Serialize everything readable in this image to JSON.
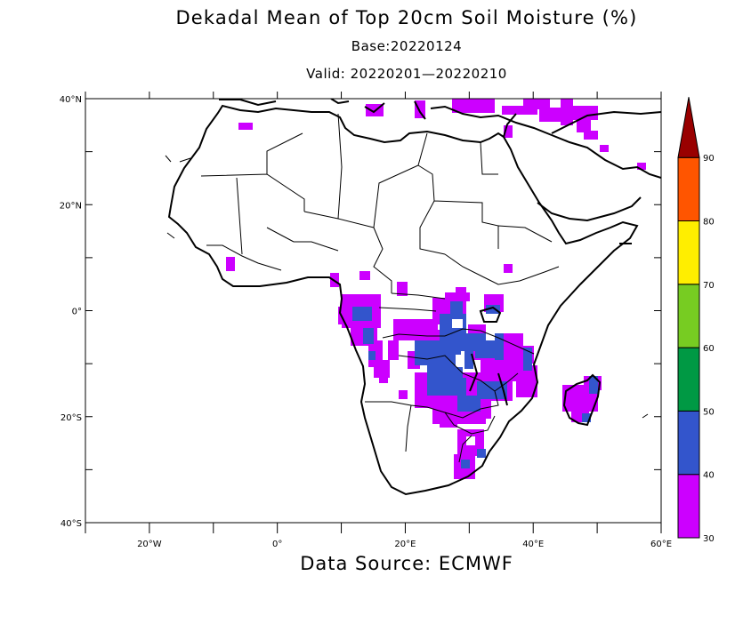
{
  "title": "Dekadal Mean of Top 20cm Soil Moisture (%)",
  "base": "Base:20220124",
  "valid": "Valid: 20220201—20220210",
  "source": "Data Source: ECMWF",
  "map": {
    "lon_range": [
      -30,
      60
    ],
    "lat_range": [
      -40,
      40
    ],
    "lat_labels": [
      "40°N",
      "20°N",
      "0°",
      "20°S",
      "40°S"
    ],
    "lat_values": [
      40,
      20,
      0,
      -20,
      -40
    ],
    "lon_labels": [
      "20°W",
      "0°",
      "20°E",
      "40°E",
      "60°E"
    ],
    "lon_values": [
      -20,
      0,
      20,
      40,
      60
    ]
  },
  "colorbar": {
    "levels": [
      "30",
      "40",
      "50",
      "60",
      "70",
      "80",
      "90"
    ],
    "colors": [
      "#cc00ff",
      "#3355cc",
      "#009944",
      "#77cc22",
      "#ffee00",
      "#ff5500",
      "#aa0000"
    ],
    "top_color": "#990000"
  },
  "moisture_regions": [
    {
      "class": "30-40",
      "color": "#cc00ff",
      "area": "Congo Basin / Gabon"
    },
    {
      "class": "30-40",
      "color": "#cc00ff",
      "area": "Zambia / Malawi / Mozambique"
    },
    {
      "class": "40-50",
      "color": "#3355cc",
      "area": "DR Congo / Zambia"
    },
    {
      "class": "30-40",
      "color": "#cc00ff",
      "area": "Madagascar"
    },
    {
      "class": "30-40",
      "color": "#cc00ff",
      "area": "Mediterranean coast"
    }
  ]
}
